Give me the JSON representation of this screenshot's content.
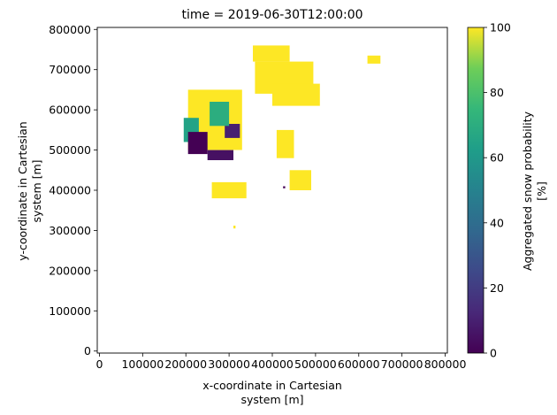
{
  "chart_data": {
    "type": "heatmap",
    "title": "time = 2019-06-30T12:00:00",
    "xlabel": [
      "x-coordinate in Cartesian",
      "system [m]"
    ],
    "ylabel": [
      "y-coordinate in Cartesian",
      "system [m]"
    ],
    "xlim": [
      -5000,
      805000
    ],
    "ylim": [
      -5000,
      805000
    ],
    "x_ticks": [
      0,
      100000,
      200000,
      300000,
      400000,
      500000,
      600000,
      700000,
      800000
    ],
    "y_ticks": [
      0,
      100000,
      200000,
      300000,
      400000,
      500000,
      600000,
      700000,
      800000
    ],
    "colormap": "viridis",
    "colorbar": {
      "label": [
        "Aggregated snow probability",
        "[%]"
      ],
      "range": [
        0,
        100
      ],
      "ticks": [
        0,
        20,
        40,
        60,
        80,
        100
      ]
    },
    "grid": false,
    "regions": [
      {
        "id": "central-snow-mass",
        "value": 100,
        "x_range": [
          205000,
          330000
        ],
        "y_range": [
          500000,
          650000
        ]
      },
      {
        "id": "central-west-edge",
        "value": 65,
        "x_range": [
          195000,
          230000
        ],
        "y_range": [
          520000,
          580000
        ]
      },
      {
        "id": "central-southwest-lowband",
        "value": 0,
        "x_range": [
          205000,
          250000
        ],
        "y_range": [
          490000,
          545000
        ]
      },
      {
        "id": "central-south-lowband",
        "value": 5,
        "x_range": [
          250000,
          310000
        ],
        "y_range": [
          475000,
          500000
        ]
      },
      {
        "id": "central-east-lowpatch",
        "value": 10,
        "x_range": [
          290000,
          325000
        ],
        "y_range": [
          530000,
          565000
        ]
      },
      {
        "id": "central-interior-green",
        "value": 70,
        "x_range": [
          255000,
          300000
        ],
        "y_range": [
          560000,
          620000
        ]
      },
      {
        "id": "northeast-snow",
        "value": 100,
        "x_range": [
          360000,
          495000
        ],
        "y_range": [
          640000,
          720000
        ]
      },
      {
        "id": "northeast-snow-south",
        "value": 100,
        "x_range": [
          400000,
          510000
        ],
        "y_range": [
          610000,
          665000
        ]
      },
      {
        "id": "north-top-patch",
        "value": 100,
        "x_range": [
          355000,
          440000
        ],
        "y_range": [
          720000,
          760000
        ]
      },
      {
        "id": "far-northeast-patch",
        "value": 100,
        "x_range": [
          620000,
          650000
        ],
        "y_range": [
          715000,
          735000
        ]
      },
      {
        "id": "middle-east-patches",
        "value": 100,
        "x_range": [
          410000,
          450000
        ],
        "y_range": [
          480000,
          550000
        ]
      },
      {
        "id": "south-central-patches",
        "value": 100,
        "x_range": [
          260000,
          340000
        ],
        "y_range": [
          380000,
          420000
        ]
      },
      {
        "id": "east-small-patches",
        "value": 100,
        "x_range": [
          440000,
          490000
        ],
        "y_range": [
          400000,
          450000
        ]
      },
      {
        "id": "isolated-low-pixel",
        "value": 0,
        "x_range": [
          425000,
          430000
        ],
        "y_range": [
          405000,
          410000
        ]
      },
      {
        "id": "isolated-snow-pixel",
        "value": 100,
        "x_range": [
          310000,
          315000
        ],
        "y_range": [
          305000,
          312000
        ]
      }
    ]
  }
}
